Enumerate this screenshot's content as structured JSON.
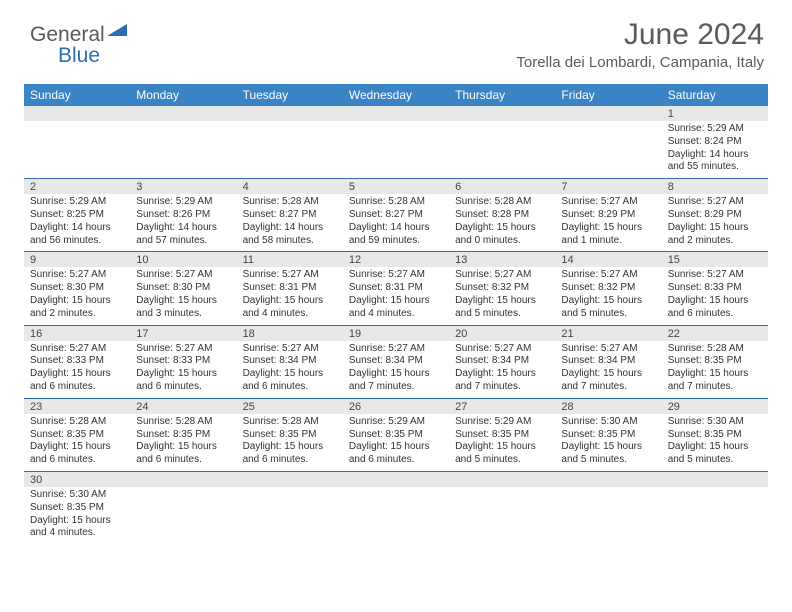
{
  "brand": {
    "name1": "General",
    "name2": "Blue"
  },
  "title": "June 2024",
  "location": "Torella dei Lombardi, Campania, Italy",
  "header_bg": "#3a83c4",
  "dayHeaders": [
    "Sunday",
    "Monday",
    "Tuesday",
    "Wednesday",
    "Thursday",
    "Friday",
    "Saturday"
  ],
  "weeks": [
    [
      null,
      null,
      null,
      null,
      null,
      null,
      {
        "n": "1",
        "sunrise": "Sunrise: 5:29 AM",
        "sunset": "Sunset: 8:24 PM",
        "daylight": "Daylight: 14 hours and 55 minutes."
      }
    ],
    [
      {
        "n": "2",
        "sunrise": "Sunrise: 5:29 AM",
        "sunset": "Sunset: 8:25 PM",
        "daylight": "Daylight: 14 hours and 56 minutes."
      },
      {
        "n": "3",
        "sunrise": "Sunrise: 5:29 AM",
        "sunset": "Sunset: 8:26 PM",
        "daylight": "Daylight: 14 hours and 57 minutes."
      },
      {
        "n": "4",
        "sunrise": "Sunrise: 5:28 AM",
        "sunset": "Sunset: 8:27 PM",
        "daylight": "Daylight: 14 hours and 58 minutes."
      },
      {
        "n": "5",
        "sunrise": "Sunrise: 5:28 AM",
        "sunset": "Sunset: 8:27 PM",
        "daylight": "Daylight: 14 hours and 59 minutes."
      },
      {
        "n": "6",
        "sunrise": "Sunrise: 5:28 AM",
        "sunset": "Sunset: 8:28 PM",
        "daylight": "Daylight: 15 hours and 0 minutes."
      },
      {
        "n": "7",
        "sunrise": "Sunrise: 5:27 AM",
        "sunset": "Sunset: 8:29 PM",
        "daylight": "Daylight: 15 hours and 1 minute."
      },
      {
        "n": "8",
        "sunrise": "Sunrise: 5:27 AM",
        "sunset": "Sunset: 8:29 PM",
        "daylight": "Daylight: 15 hours and 2 minutes."
      }
    ],
    [
      {
        "n": "9",
        "sunrise": "Sunrise: 5:27 AM",
        "sunset": "Sunset: 8:30 PM",
        "daylight": "Daylight: 15 hours and 2 minutes."
      },
      {
        "n": "10",
        "sunrise": "Sunrise: 5:27 AM",
        "sunset": "Sunset: 8:30 PM",
        "daylight": "Daylight: 15 hours and 3 minutes."
      },
      {
        "n": "11",
        "sunrise": "Sunrise: 5:27 AM",
        "sunset": "Sunset: 8:31 PM",
        "daylight": "Daylight: 15 hours and 4 minutes."
      },
      {
        "n": "12",
        "sunrise": "Sunrise: 5:27 AM",
        "sunset": "Sunset: 8:31 PM",
        "daylight": "Daylight: 15 hours and 4 minutes."
      },
      {
        "n": "13",
        "sunrise": "Sunrise: 5:27 AM",
        "sunset": "Sunset: 8:32 PM",
        "daylight": "Daylight: 15 hours and 5 minutes."
      },
      {
        "n": "14",
        "sunrise": "Sunrise: 5:27 AM",
        "sunset": "Sunset: 8:32 PM",
        "daylight": "Daylight: 15 hours and 5 minutes."
      },
      {
        "n": "15",
        "sunrise": "Sunrise: 5:27 AM",
        "sunset": "Sunset: 8:33 PM",
        "daylight": "Daylight: 15 hours and 6 minutes."
      }
    ],
    [
      {
        "n": "16",
        "sunrise": "Sunrise: 5:27 AM",
        "sunset": "Sunset: 8:33 PM",
        "daylight": "Daylight: 15 hours and 6 minutes."
      },
      {
        "n": "17",
        "sunrise": "Sunrise: 5:27 AM",
        "sunset": "Sunset: 8:33 PM",
        "daylight": "Daylight: 15 hours and 6 minutes."
      },
      {
        "n": "18",
        "sunrise": "Sunrise: 5:27 AM",
        "sunset": "Sunset: 8:34 PM",
        "daylight": "Daylight: 15 hours and 6 minutes."
      },
      {
        "n": "19",
        "sunrise": "Sunrise: 5:27 AM",
        "sunset": "Sunset: 8:34 PM",
        "daylight": "Daylight: 15 hours and 7 minutes."
      },
      {
        "n": "20",
        "sunrise": "Sunrise: 5:27 AM",
        "sunset": "Sunset: 8:34 PM",
        "daylight": "Daylight: 15 hours and 7 minutes."
      },
      {
        "n": "21",
        "sunrise": "Sunrise: 5:27 AM",
        "sunset": "Sunset: 8:34 PM",
        "daylight": "Daylight: 15 hours and 7 minutes."
      },
      {
        "n": "22",
        "sunrise": "Sunrise: 5:28 AM",
        "sunset": "Sunset: 8:35 PM",
        "daylight": "Daylight: 15 hours and 7 minutes."
      }
    ],
    [
      {
        "n": "23",
        "sunrise": "Sunrise: 5:28 AM",
        "sunset": "Sunset: 8:35 PM",
        "daylight": "Daylight: 15 hours and 6 minutes."
      },
      {
        "n": "24",
        "sunrise": "Sunrise: 5:28 AM",
        "sunset": "Sunset: 8:35 PM",
        "daylight": "Daylight: 15 hours and 6 minutes."
      },
      {
        "n": "25",
        "sunrise": "Sunrise: 5:28 AM",
        "sunset": "Sunset: 8:35 PM",
        "daylight": "Daylight: 15 hours and 6 minutes."
      },
      {
        "n": "26",
        "sunrise": "Sunrise: 5:29 AM",
        "sunset": "Sunset: 8:35 PM",
        "daylight": "Daylight: 15 hours and 6 minutes."
      },
      {
        "n": "27",
        "sunrise": "Sunrise: 5:29 AM",
        "sunset": "Sunset: 8:35 PM",
        "daylight": "Daylight: 15 hours and 5 minutes."
      },
      {
        "n": "28",
        "sunrise": "Sunrise: 5:30 AM",
        "sunset": "Sunset: 8:35 PM",
        "daylight": "Daylight: 15 hours and 5 minutes."
      },
      {
        "n": "29",
        "sunrise": "Sunrise: 5:30 AM",
        "sunset": "Sunset: 8:35 PM",
        "daylight": "Daylight: 15 hours and 5 minutes."
      }
    ],
    [
      {
        "n": "30",
        "sunrise": "Sunrise: 5:30 AM",
        "sunset": "Sunset: 8:35 PM",
        "daylight": "Daylight: 15 hours and 4 minutes."
      },
      null,
      null,
      null,
      null,
      null,
      null
    ]
  ]
}
